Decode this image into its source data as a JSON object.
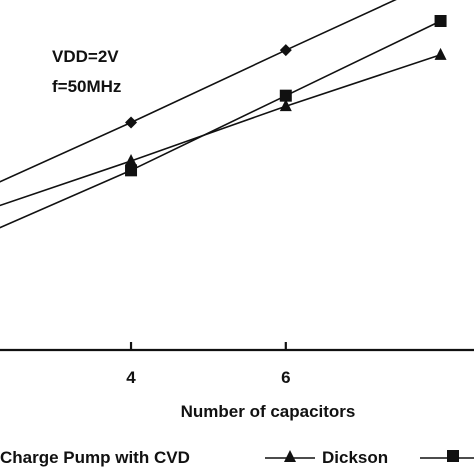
{
  "chart_data": {
    "type": "line",
    "title": "",
    "xlabel": "Number of capacitors",
    "ylabel": "",
    "xlim": [
      2.1,
      8.6
    ],
    "ylim": [
      2.6,
      5.6
    ],
    "xticks": [
      4,
      6
    ],
    "annotations": [
      "VDD=2V",
      "f=50MHz"
    ],
    "series": [
      {
        "name": "Charge Pump with CVD",
        "marker": "diamond",
        "legend_visible": false,
        "x": [
          2,
          4,
          6,
          8
        ],
        "y": [
          3.95,
          4.55,
          5.17,
          5.78
        ]
      },
      {
        "name": "Dickson",
        "marker": "triangle",
        "legend_visible": true,
        "x": [
          2,
          4,
          6,
          8
        ],
        "y": [
          3.77,
          4.22,
          4.69,
          5.13
        ]
      },
      {
        "name": "",
        "marker": "square",
        "legend_visible": true,
        "x": [
          2,
          4,
          6,
          8
        ],
        "y": [
          3.56,
          4.14,
          4.78,
          5.42
        ]
      }
    ],
    "legend": {
      "placement": "bottom",
      "entries": [
        "Charge Pump with CVD",
        "Dickson"
      ]
    },
    "grid": false
  }
}
